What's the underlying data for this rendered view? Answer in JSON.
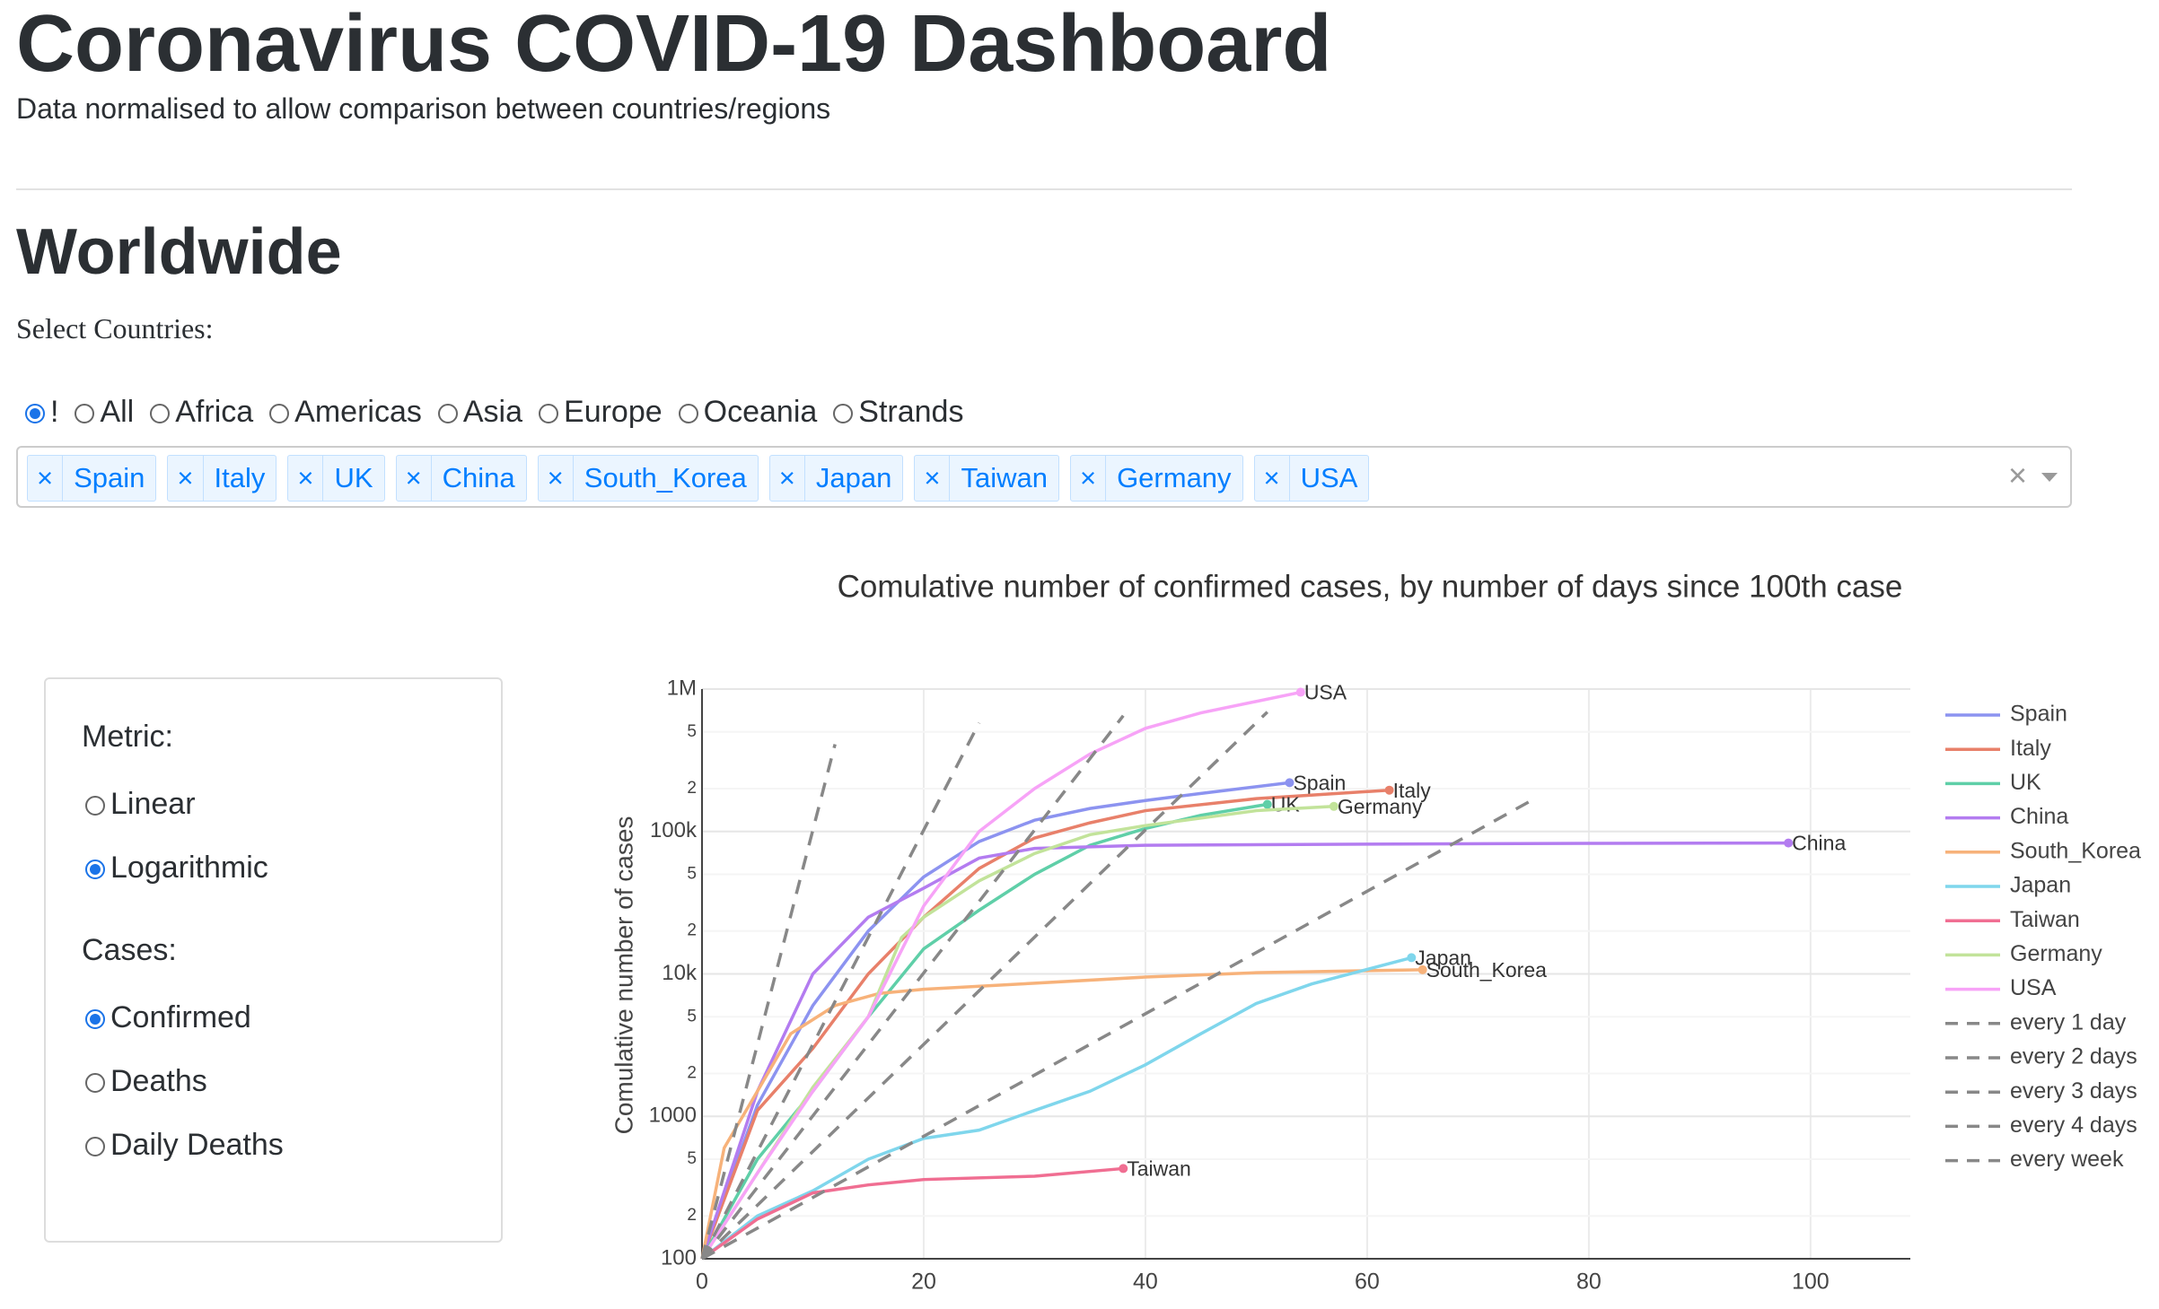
{
  "header": {
    "title": "Coronavirus COVID-19 Dashboard",
    "subtitle": "Data normalised to allow comparison between countries/regions"
  },
  "section": {
    "title": "Worldwide",
    "select_label": "Select Countries:",
    "region_options": [
      "!",
      "All",
      "Africa",
      "Americas",
      "Asia",
      "Europe",
      "Oceania",
      "Strands"
    ],
    "region_selected": 0,
    "selected_countries": [
      "Spain",
      "Italy",
      "UK",
      "China",
      "South_Korea",
      "Japan",
      "Taiwan",
      "Germany",
      "USA"
    ]
  },
  "sidebar": {
    "metric_label": "Metric:",
    "metric_options": [
      "Linear",
      "Logarithmic"
    ],
    "metric_selected": 1,
    "cases_label": "Cases:",
    "case_options": [
      "Confirmed",
      "Deaths",
      "Daily Deaths"
    ],
    "case_selected": 0
  },
  "chart_data": {
    "type": "line",
    "title": "Comulative number of confirmed cases, by number of days since 100th case",
    "y_label": "Comulative number of cases",
    "log_y": true,
    "grid": true,
    "xlim": [
      0,
      109
    ],
    "xticks": [
      0,
      20,
      40,
      60,
      80,
      100
    ],
    "ylim": [
      100,
      1000000
    ],
    "yticks": [
      100,
      {
        "value": 200,
        "label": "2"
      },
      {
        "value": 500,
        "label": "5"
      },
      1000,
      {
        "value": 2000,
        "label": "2"
      },
      {
        "value": 5000,
        "label": "5"
      },
      {
        "value": 10000,
        "label": "10k"
      },
      {
        "value": 20000,
        "label": "2"
      },
      {
        "value": 50000,
        "label": "5"
      },
      {
        "value": 100000,
        "label": "100k"
      },
      {
        "value": 200000,
        "label": "2"
      },
      {
        "value": 500000,
        "label": "5"
      },
      {
        "value": 1000000,
        "label": "1M"
      }
    ],
    "series": [
      {
        "name": "Spain",
        "color": "#8c93f0",
        "x": [
          0,
          5,
          10,
          15,
          20,
          25,
          30,
          35,
          40,
          45,
          53
        ],
        "values": [
          100,
          1200,
          6000,
          20000,
          48000,
          85000,
          120000,
          145000,
          165000,
          185000,
          220000
        ]
      },
      {
        "name": "Italy",
        "color": "#e8806a",
        "x": [
          0,
          5,
          10,
          15,
          20,
          25,
          30,
          35,
          40,
          50,
          62
        ],
        "values": [
          100,
          1100,
          3000,
          10000,
          25000,
          55000,
          90000,
          115000,
          140000,
          170000,
          195000
        ]
      },
      {
        "name": "UK",
        "color": "#5fcfa8",
        "x": [
          0,
          5,
          10,
          15,
          20,
          25,
          30,
          35,
          40,
          45,
          51
        ],
        "values": [
          100,
          500,
          1500,
          5000,
          15000,
          28000,
          50000,
          80000,
          105000,
          130000,
          155000
        ]
      },
      {
        "name": "China",
        "color": "#b37cf0",
        "x": [
          0,
          5,
          10,
          15,
          20,
          25,
          30,
          40,
          60,
          80,
          98
        ],
        "values": [
          100,
          1500,
          10000,
          25000,
          40000,
          65000,
          76000,
          80000,
          81500,
          82500,
          83000
        ]
      },
      {
        "name": "South_Korea",
        "color": "#f7b27a",
        "x": [
          0,
          2,
          5,
          8,
          12,
          16,
          20,
          30,
          40,
          50,
          65
        ],
        "values": [
          100,
          600,
          1500,
          3800,
          6000,
          7300,
          7800,
          8600,
          9500,
          10200,
          10700
        ]
      },
      {
        "name": "Japan",
        "color": "#7fd6ec",
        "x": [
          0,
          5,
          10,
          15,
          20,
          25,
          30,
          35,
          40,
          45,
          50,
          55,
          64
        ],
        "values": [
          100,
          200,
          300,
          500,
          700,
          800,
          1100,
          1500,
          2300,
          3800,
          6200,
          8500,
          13000
        ]
      },
      {
        "name": "Taiwan",
        "color": "#f06e92",
        "x": [
          0,
          5,
          10,
          15,
          20,
          30,
          38
        ],
        "values": [
          100,
          190,
          290,
          330,
          360,
          380,
          430
        ]
      },
      {
        "name": "Germany",
        "color": "#c2e39a",
        "x": [
          0,
          5,
          10,
          15,
          18,
          20,
          25,
          30,
          35,
          40,
          50,
          57
        ],
        "values": [
          100,
          400,
          1600,
          5000,
          18000,
          25000,
          45000,
          70000,
          95000,
          110000,
          140000,
          150000
        ]
      },
      {
        "name": "USA",
        "color": "#f7a3f7",
        "x": [
          0,
          5,
          10,
          15,
          20,
          25,
          30,
          35,
          40,
          45,
          54
        ],
        "values": [
          100,
          400,
          1500,
          5000,
          30000,
          100000,
          200000,
          350000,
          530000,
          680000,
          950000
        ]
      },
      {
        "name": "every 1 day",
        "color": "#888888",
        "dash": true,
        "x": [
          0,
          12
        ],
        "values": [
          100,
          409600
        ]
      },
      {
        "name": "every 2 days",
        "color": "#888888",
        "dash": true,
        "x": [
          0,
          25
        ],
        "values": [
          100,
          579000
        ]
      },
      {
        "name": "every 3 days",
        "color": "#888888",
        "dash": true,
        "x": [
          0,
          38
        ],
        "values": [
          100,
          650000
        ]
      },
      {
        "name": "every 4 days",
        "color": "#888888",
        "dash": true,
        "x": [
          0,
          51
        ],
        "values": [
          100,
          690000
        ]
      },
      {
        "name": "every week",
        "color": "#888888",
        "dash": true,
        "x": [
          0,
          75
        ],
        "values": [
          100,
          168000
        ]
      }
    ]
  }
}
